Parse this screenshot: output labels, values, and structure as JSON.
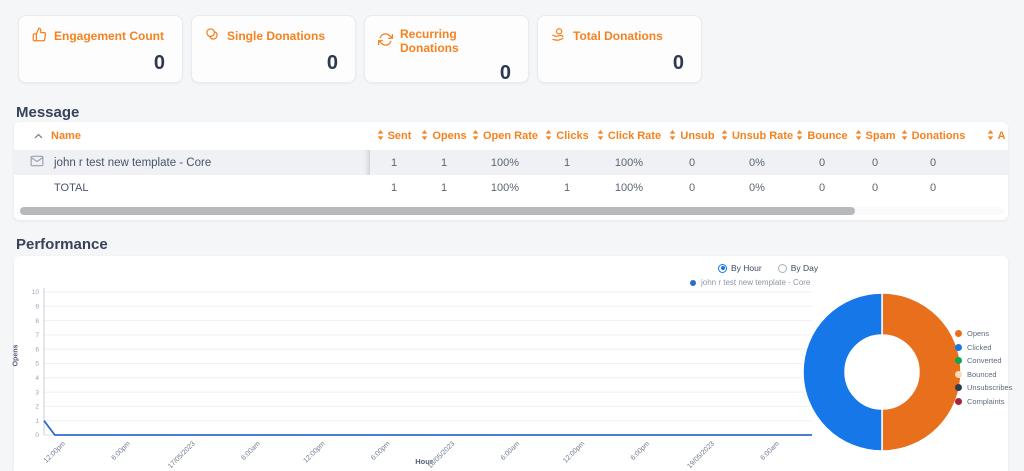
{
  "colors": {
    "accent": "#f5821f",
    "navy": "#2e3950"
  },
  "stats": [
    {
      "icon": "thumbs-up-icon",
      "label": "Engagement Count",
      "value": "0"
    },
    {
      "icon": "coins-icon",
      "label": "Single Donations",
      "value": "0"
    },
    {
      "icon": "recurring-arrows-icon",
      "label": "Recurring Donations",
      "value": "0"
    },
    {
      "icon": "hand-coin-icon",
      "label": "Total Donations",
      "value": "0"
    }
  ],
  "message": {
    "title": "Message",
    "columns": [
      "Name",
      "Sent",
      "Opens",
      "Open Rate",
      "Clicks",
      "Click Rate",
      "Unsub",
      "Unsub Rate",
      "Bounce",
      "Spam",
      "Donations",
      "A"
    ],
    "rows": [
      {
        "name": "john r test new template - Core",
        "cells": [
          "1",
          "1",
          "100%",
          "1",
          "100%",
          "0",
          "0%",
          "0",
          "0",
          "0"
        ]
      },
      {
        "name": "TOTAL",
        "cells": [
          "1",
          "1",
          "100%",
          "1",
          "100%",
          "0",
          "0%",
          "0",
          "0",
          "0"
        ]
      }
    ]
  },
  "performance": {
    "title": "Performance",
    "radios": [
      {
        "label": "By Hour",
        "selected": true
      },
      {
        "label": "By Day",
        "selected": false
      }
    ],
    "series_legend": "john r test new template - Core"
  },
  "chart_data": [
    {
      "type": "line",
      "title": "",
      "xlabel": "Hour",
      "ylabel": "Opens",
      "ylim": [
        0,
        10
      ],
      "y_ticks": [
        0,
        1,
        2,
        3,
        4,
        5,
        6,
        7,
        8,
        9,
        10
      ],
      "x_tick_labels": [
        "12:00pm",
        "6:00pm",
        "17/05/2023",
        "6:00am",
        "12:00pm",
        "6:00pm",
        "18/05/2023",
        "6:00am",
        "12:00pm",
        "6:00pm",
        "19/05/2023",
        "6:00am"
      ],
      "x_label_start_index": 2,
      "x_label_every": 6,
      "grid": true,
      "legend_position": "top-right",
      "series": [
        {
          "name": "john r test new template - Core",
          "color": "#2e6ad1",
          "values": [
            1,
            0,
            0,
            0,
            0,
            0,
            0,
            0,
            0,
            0,
            0,
            0,
            0,
            0,
            0,
            0,
            0,
            0,
            0,
            0,
            0,
            0,
            0,
            0,
            0,
            0,
            0,
            0,
            0,
            0,
            0,
            0,
            0,
            0,
            0,
            0,
            0,
            0,
            0,
            0,
            0,
            0,
            0,
            0,
            0,
            0,
            0,
            0,
            0,
            0,
            0,
            0,
            0,
            0,
            0,
            0,
            0,
            0,
            0,
            0,
            0,
            0,
            0,
            0,
            0,
            0,
            0,
            0,
            0,
            0,
            0,
            0
          ]
        }
      ]
    },
    {
      "type": "pie",
      "donut": true,
      "legend_position": "right",
      "slices": [
        {
          "label": "Opens",
          "value": 1,
          "color": "#e8701c"
        },
        {
          "label": "Clicked",
          "value": 1,
          "color": "#1677e8"
        },
        {
          "label": "Converted",
          "value": 0,
          "color": "#0ca750"
        },
        {
          "label": "Bounced",
          "value": 0,
          "color": "#f9dcb8"
        },
        {
          "label": "Unsubscribes",
          "value": 0,
          "color": "#2e3a50"
        },
        {
          "label": "Complaints",
          "value": 0,
          "color": "#a82339"
        }
      ]
    }
  ]
}
